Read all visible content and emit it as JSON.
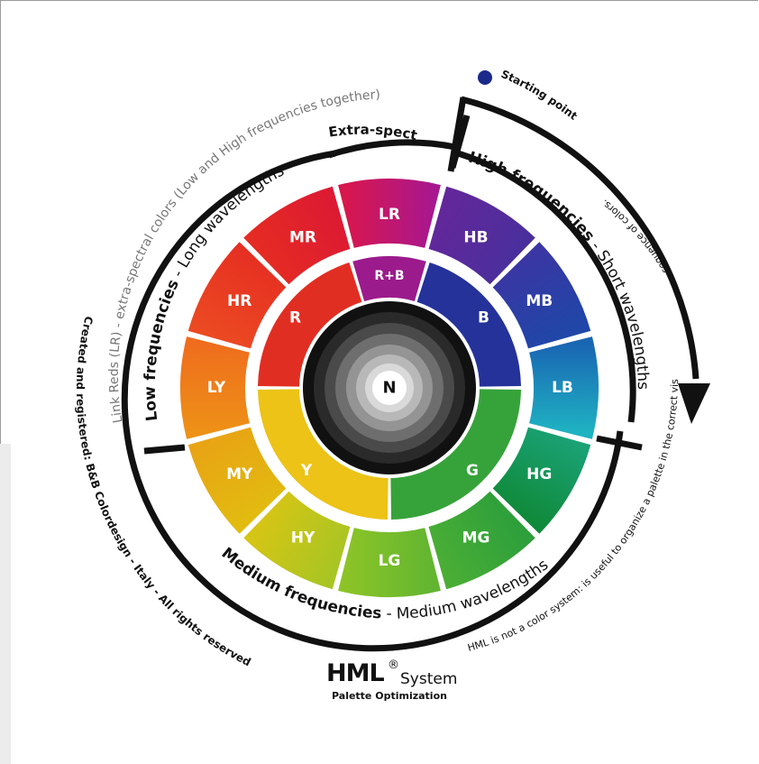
{
  "center": {
    "label": "N"
  },
  "inner": [
    {
      "label": "R+B",
      "color": "#9b1b8c"
    },
    {
      "label": "B",
      "color": "#24329a"
    },
    {
      "label": "G",
      "color": "#36a33a"
    },
    {
      "label": "Y",
      "color": "#ecc316"
    },
    {
      "label": "R",
      "color": "#e12e22"
    }
  ],
  "outer": [
    {
      "label": "LR",
      "c1": "#d8174d",
      "c2": "#a8178f"
    },
    {
      "label": "HB",
      "c1": "#63279a",
      "c2": "#4a2f9c"
    },
    {
      "label": "MB",
      "c1": "#3a36a3",
      "c2": "#1f47a8"
    },
    {
      "label": "LB",
      "c1": "#1966b3",
      "c2": "#1fb2c2"
    },
    {
      "label": "HG",
      "c1": "#1aa174",
      "c2": "#108a3a"
    },
    {
      "label": "MG",
      "c1": "#2d9f3b",
      "c2": "#4aae35"
    },
    {
      "label": "LG",
      "c1": "#62b531",
      "c2": "#8cc427"
    },
    {
      "label": "HY",
      "c1": "#a8c523",
      "c2": "#d5c515"
    },
    {
      "label": "MY",
      "c1": "#e2bb10",
      "c2": "#e8a414"
    },
    {
      "label": "LY",
      "c1": "#ee9117",
      "c2": "#ef6d1d"
    },
    {
      "label": "HR",
      "c1": "#eb4a22",
      "c2": "#e63022"
    },
    {
      "label": "MR",
      "c1": "#e52b23",
      "c2": "#dc1a33"
    }
  ],
  "arc_labels": {
    "extra_spectral": "Extra-spectral",
    "link_reds": "Link Reds (LR) - extra-spectral colors (Low and High frequencies together)",
    "low_bold": "Low frequencies",
    "low_rest": " - Long wavelengths",
    "high_bold": "High frequencies",
    "high_rest": " - Short wavelengths",
    "medium_bold": "Medium frequencies",
    "medium_rest": " - Medium wavelengths",
    "created": "Created and registered: B&B Colordesign - Italy - All rights reserved",
    "hml_note": "HML is not a color system: is useful to organize a palette in the correct visual",
    "sequence": "sequence of colors."
  },
  "starting_point": "Starting point",
  "logo": {
    "brand": "HML",
    "reg": "®",
    "system": "System",
    "subtitle": "Palette Optimization"
  }
}
